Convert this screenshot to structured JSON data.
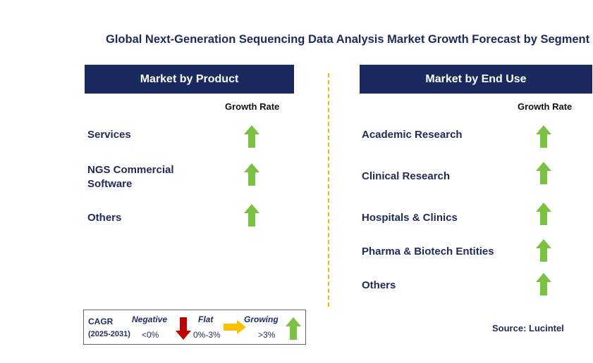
{
  "title": "Global Next-Generation Sequencing Data Analysis Market Growth Forecast by Segment",
  "left_panel": {
    "header": "Market by Product",
    "growth_rate_label": "Growth Rate",
    "items": [
      {
        "label": "Services",
        "trend": "growing"
      },
      {
        "label": "NGS Commercial Software",
        "trend": "growing"
      },
      {
        "label": "Others",
        "trend": "growing"
      }
    ]
  },
  "right_panel": {
    "header": "Market by End Use",
    "growth_rate_label": "Growth Rate",
    "items": [
      {
        "label": "Academic Research",
        "trend": "growing"
      },
      {
        "label": "Clinical Research",
        "trend": "growing"
      },
      {
        "label": "Hospitals & Clinics",
        "trend": "growing"
      },
      {
        "label": "Pharma & Biotech Entities",
        "trend": "growing"
      },
      {
        "label": "Others",
        "trend": "growing"
      }
    ]
  },
  "legend": {
    "cagr": "CAGR",
    "period": "(2025-2031)",
    "negative": {
      "label": "Negative",
      "range": "<0%"
    },
    "flat": {
      "label": "Flat",
      "range": "0%-3%"
    },
    "growing": {
      "label": "Growing",
      "range": ">3%"
    }
  },
  "source": "Source: Lucintel",
  "colors": {
    "header_bg": "#1b2a5e",
    "growing_arrow": "#7ac143",
    "negative_arrow": "#c00000",
    "flat_arrow": "#ffc000",
    "divider": "#f5b800"
  },
  "icons": {
    "growing": "green-up-arrow-icon",
    "negative": "red-down-arrow-icon",
    "flat": "yellow-right-arrow-icon"
  }
}
